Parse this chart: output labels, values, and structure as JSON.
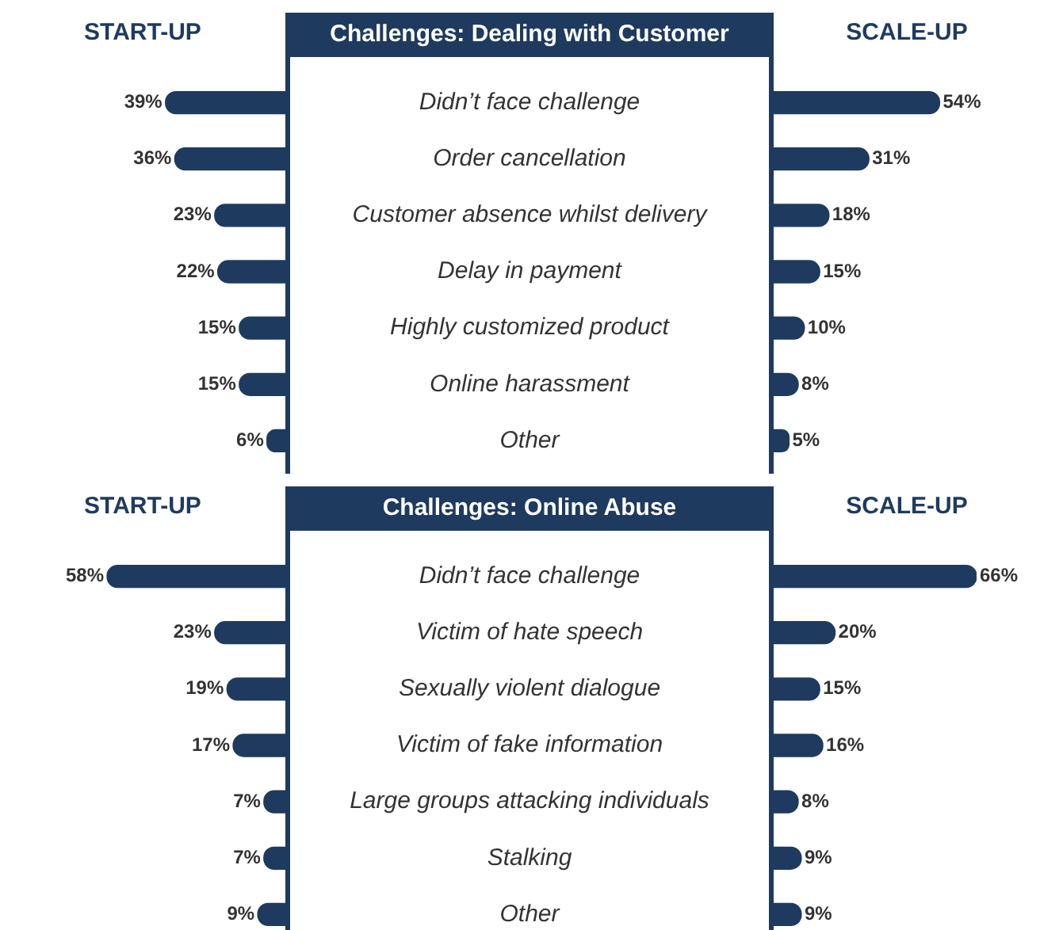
{
  "chart_data": [
    {
      "type": "bar",
      "orientation": "horizontal",
      "tick_labels": "y",
      "categories": [
        "Didn’t face challenge",
        "Order cancellation",
        "Customer absence whilst delivery",
        "Delay in payment",
        "Highly customized product",
        "Online harassment",
        "Other"
      ],
      "series": [
        {
          "name": "START-UP",
          "color": "#1f3a5f",
          "values": [
            39,
            36,
            23,
            22,
            15,
            15,
            6
          ],
          "value_labels": [
            "39%",
            "36%",
            "23%",
            "22%",
            "15%",
            "15%",
            "6%"
          ]
        }
      ]
    },
    {
      "type": "bar",
      "orientation": "horizontal",
      "title": "Challenges: Dealing with Customer",
      "tick_labels": false,
      "categories": [
        null,
        null,
        null,
        null,
        null,
        null,
        null
      ],
      "series": [
        {
          "name": "SCALE-UP",
          "color": "#1f3a5f",
          "values": [
            54,
            31,
            18,
            15,
            10,
            8,
            5
          ],
          "value_labels": [
            "54%",
            "31%",
            "18%",
            "15%",
            "10%",
            "8%",
            "5%"
          ]
        }
      ]
    },
    {
      "type": "bar",
      "orientation": "horizontal",
      "tick_labels": "y",
      "categories": [
        "Didn’t face challenge",
        "Victim of hate speech",
        "Sexually violent dialogue",
        "Victim of fake information",
        "Large groups attacking individuals",
        "Stalking",
        "Other"
      ],
      "series": [
        {
          "name": "START-UP",
          "color": "#1f3a5f",
          "values": [
            58,
            23,
            19,
            17,
            7,
            7,
            9
          ],
          "value_labels": [
            "58%",
            "23%",
            "19%",
            "17%",
            "7%",
            "7%",
            "9%"
          ]
        }
      ]
    },
    {
      "type": "bar",
      "orientation": "horizontal",
      "title": "Challenges: Online Abuse",
      "tick_labels": false,
      "categories": [
        null,
        null,
        null,
        null,
        null,
        null,
        null
      ],
      "series": [
        {
          "name": "SCALE-UP",
          "color": "#1f3a5f",
          "values": [
            66,
            20,
            15,
            16,
            8,
            9,
            9
          ],
          "value_labels": [
            "66%",
            "20%",
            "15%",
            "16%",
            "8%",
            "9%",
            "9%"
          ]
        }
      ]
    }
  ]
}
